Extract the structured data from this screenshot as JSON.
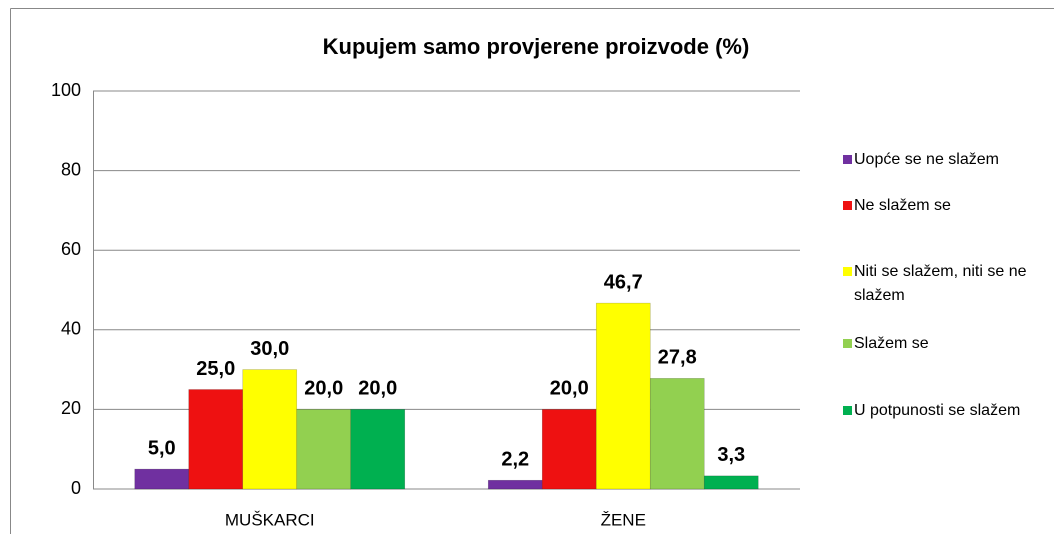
{
  "chart_data": {
    "type": "bar",
    "title": "Kupujem samo provjerene proizvode (%)",
    "categories": [
      "MUŠKARCI",
      "ŽENE"
    ],
    "series": [
      {
        "name": "Uopće se ne slažem",
        "color": "#7030a0",
        "values": [
          5.0,
          2.2
        ],
        "value_labels": [
          "5,0",
          "2,2"
        ]
      },
      {
        "name": "Ne slažem se",
        "color": "#ee1111",
        "values": [
          25.0,
          20.0
        ],
        "value_labels": [
          "25,0",
          "20,0"
        ]
      },
      {
        "name": "Niti se slažem, niti se ne slažem",
        "color": "#ffff00",
        "values": [
          30.0,
          46.7
        ],
        "value_labels": [
          "30,0",
          "46,7"
        ]
      },
      {
        "name": "Slažem se",
        "color": "#92d050",
        "values": [
          20.0,
          27.8
        ],
        "value_labels": [
          "20,0",
          "27,8"
        ]
      },
      {
        "name": "U potpunosti se slažem",
        "color": "#00b050",
        "values": [
          20.0,
          3.3
        ],
        "value_labels": [
          "20,0",
          "3,3"
        ]
      }
    ],
    "ylim": [
      0,
      100
    ],
    "yticks": [
      0,
      20,
      40,
      60,
      80,
      100
    ],
    "grid": true,
    "legend": "right"
  }
}
